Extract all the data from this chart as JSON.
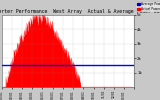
{
  "title": "Solar PV/Inverter Performance  West Array  Actual & Average Power Output",
  "legend_labels": [
    "Average Power",
    "Actual Power"
  ],
  "legend_colors": [
    "#0000cc",
    "#ff0000"
  ],
  "bg_color": "#c8c8c8",
  "plot_bg_color": "#ffffff",
  "grid_color": "#888888",
  "bar_color": "#ff0000",
  "avg_line_color": "#0000ff",
  "avg_line_y": 0.3,
  "ylim": [
    0,
    1.0
  ],
  "xlim": [
    0,
    365
  ],
  "title_fontsize": 3.5,
  "y_tick_labels": [
    "1k",
    "2k",
    "3k",
    "4k",
    "5k"
  ],
  "y_tick_positions": [
    0.2,
    0.4,
    0.6,
    0.8,
    1.0
  ],
  "peak_values": [
    0,
    0,
    0,
    0,
    0,
    0,
    0,
    0,
    0,
    0,
    0.01,
    0.01,
    0.02,
    0.03,
    0.04,
    0.05,
    0.06,
    0.07,
    0.09,
    0.11,
    0.13,
    0.15,
    0.17,
    0.19,
    0.21,
    0.22,
    0.24,
    0.26,
    0.27,
    0.29,
    0.31,
    0.32,
    0.34,
    0.35,
    0.37,
    0.38,
    0.4,
    0.41,
    0.42,
    0.44,
    0.45,
    0.46,
    0.47,
    0.48,
    0.49,
    0.5,
    0.51,
    0.52,
    0.53,
    0.54,
    0.55,
    0.56,
    0.57,
    0.58,
    0.59,
    0.6,
    0.61,
    0.62,
    0.63,
    0.64,
    0.65,
    0.66,
    0.67,
    0.68,
    0.69,
    0.7,
    0.71,
    0.72,
    0.73,
    0.74,
    0.75,
    0.76,
    0.77,
    0.78,
    0.79,
    0.8,
    0.81,
    0.82,
    0.83,
    0.82,
    0.83,
    0.84,
    0.85,
    0.86,
    0.87,
    0.88,
    0.87,
    0.88,
    0.89,
    0.9,
    0.91,
    0.88,
    0.87,
    0.86,
    0.9,
    0.92,
    0.91,
    0.93,
    0.92,
    0.88,
    0.85,
    0.88,
    0.91,
    0.93,
    0.91,
    0.9,
    0.89,
    0.88,
    0.87,
    0.86,
    0.88,
    0.9,
    0.89,
    0.88,
    0.87,
    0.88,
    0.89,
    0.9,
    0.88,
    0.86,
    0.85,
    0.84,
    0.85,
    0.84,
    0.85,
    0.86,
    0.85,
    0.84,
    0.83,
    0.82,
    0.81,
    0.82,
    0.8,
    0.79,
    0.78,
    0.79,
    0.78,
    0.77,
    0.76,
    0.77,
    0.75,
    0.74,
    0.73,
    0.72,
    0.71,
    0.7,
    0.69,
    0.68,
    0.67,
    0.66,
    0.65,
    0.64,
    0.63,
    0.62,
    0.61,
    0.6,
    0.59,
    0.58,
    0.57,
    0.56,
    0.55,
    0.56,
    0.57,
    0.55,
    0.54,
    0.53,
    0.52,
    0.51,
    0.5,
    0.49,
    0.48,
    0.47,
    0.46,
    0.45,
    0.44,
    0.43,
    0.42,
    0.41,
    0.4,
    0.39,
    0.38,
    0.37,
    0.36,
    0.35,
    0.34,
    0.33,
    0.32,
    0.31,
    0.3,
    0.29,
    0.28,
    0.27,
    0.26,
    0.25,
    0.24,
    0.23,
    0.22,
    0.21,
    0.2,
    0.19,
    0.18,
    0.17,
    0.16,
    0.15,
    0.14,
    0.13,
    0.12,
    0.11,
    0.1,
    0.09,
    0.08,
    0.07,
    0.06,
    0.05,
    0.04,
    0.03,
    0.02,
    0.01,
    0,
    0,
    0,
    0,
    0,
    0,
    0,
    0,
    0,
    0,
    0,
    0,
    0,
    0,
    0,
    0,
    0,
    0,
    0,
    0,
    0,
    0,
    0,
    0,
    0,
    0,
    0,
    0,
    0,
    0,
    0,
    0,
    0,
    0,
    0,
    0,
    0,
    0,
    0,
    0,
    0,
    0,
    0,
    0,
    0,
    0,
    0,
    0,
    0,
    0,
    0,
    0,
    0,
    0,
    0,
    0,
    0,
    0,
    0,
    0,
    0,
    0,
    0,
    0,
    0,
    0,
    0,
    0,
    0,
    0,
    0,
    0,
    0,
    0,
    0,
    0,
    0,
    0,
    0,
    0,
    0,
    0,
    0,
    0,
    0,
    0,
    0,
    0,
    0,
    0,
    0,
    0,
    0,
    0,
    0,
    0,
    0,
    0,
    0,
    0,
    0,
    0,
    0,
    0,
    0,
    0,
    0,
    0,
    0,
    0,
    0,
    0,
    0,
    0,
    0,
    0,
    0,
    0,
    0,
    0,
    0,
    0,
    0,
    0,
    0,
    0,
    0,
    0,
    0,
    0,
    0,
    0,
    0,
    0,
    0,
    0,
    0,
    0,
    0,
    0
  ]
}
